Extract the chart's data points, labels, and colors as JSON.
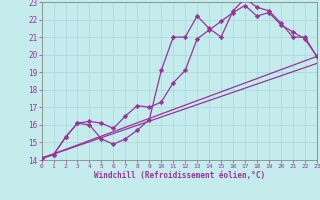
{
  "xlabel": "Windchill (Refroidissement éolien,°C)",
  "xlim": [
    0,
    23
  ],
  "ylim": [
    14,
    23
  ],
  "xticks": [
    0,
    1,
    2,
    3,
    4,
    5,
    6,
    7,
    8,
    9,
    10,
    11,
    12,
    13,
    14,
    15,
    16,
    17,
    18,
    19,
    20,
    21,
    22,
    23
  ],
  "yticks": [
    14,
    15,
    16,
    17,
    18,
    19,
    20,
    21,
    22,
    23
  ],
  "bg_color": "#c5eced",
  "line_color": "#993399",
  "grid_major_color": "#b0d8da",
  "grid_minor_color": "#daf0f0",
  "line1_x": [
    0,
    1,
    2,
    3,
    4,
    5,
    6,
    7,
    8,
    9,
    10,
    11,
    12,
    13,
    14,
    15,
    16,
    17,
    18,
    19,
    20,
    21,
    22,
    23
  ],
  "line1_y": [
    14.1,
    14.3,
    15.3,
    16.1,
    16.0,
    15.2,
    14.9,
    15.2,
    15.7,
    16.3,
    19.1,
    21.0,
    21.0,
    22.2,
    21.5,
    21.0,
    22.5,
    23.2,
    22.7,
    22.5,
    21.8,
    21.0,
    21.0,
    19.9
  ],
  "line2_x": [
    0,
    1,
    2,
    3,
    4,
    5,
    6,
    7,
    8,
    9,
    10,
    11,
    12,
    13,
    14,
    15,
    16,
    17,
    18,
    19,
    20,
    21,
    22,
    23
  ],
  "line2_y": [
    14.1,
    14.3,
    15.3,
    16.1,
    16.2,
    16.1,
    15.8,
    16.5,
    17.1,
    17.0,
    17.3,
    18.4,
    19.1,
    20.9,
    21.4,
    21.9,
    22.4,
    22.8,
    22.2,
    22.4,
    21.7,
    21.3,
    20.9,
    19.9
  ],
  "line3_x": [
    0,
    23
  ],
  "line3_y": [
    14.1,
    19.5
  ],
  "line4_x": [
    0,
    23
  ],
  "line4_y": [
    14.1,
    19.9
  ]
}
